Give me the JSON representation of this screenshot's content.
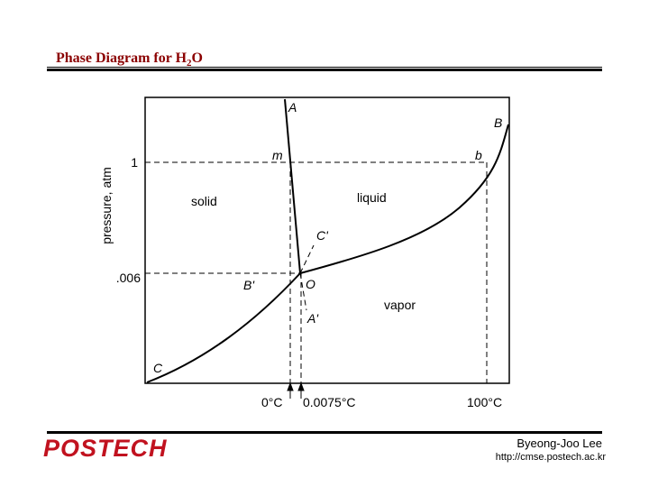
{
  "slide": {
    "title_main": "Phase Diagram for H",
    "title_sub": "2",
    "title_tail": "O"
  },
  "diagram": {
    "y_axis_label": "pressure, atm",
    "y_ticks": [
      "1",
      ".006"
    ],
    "x_ticks": [
      "0°C",
      "0.0075°C",
      "100°C"
    ],
    "regions": {
      "solid": "solid",
      "liquid": "liquid",
      "vapor": "vapor"
    },
    "points": {
      "A": "A",
      "m": "m",
      "B": "B",
      "b": "b",
      "C_prime": "C'",
      "B_prime": "B'",
      "O": "O",
      "A_prime": "A'",
      "C": "C"
    }
  },
  "footer": {
    "logo": "POSTECH",
    "author": "Byeong-Joo Lee",
    "url": "http://cmse.postech.ac.kr"
  },
  "colors": {
    "title": "#8b0000",
    "logo": "#c1121f",
    "ink": "#000000"
  }
}
